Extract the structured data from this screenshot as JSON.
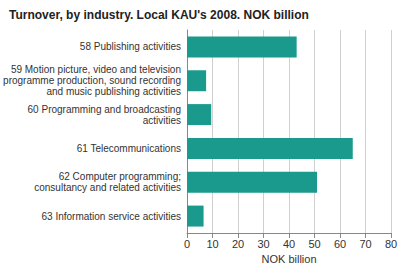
{
  "chart_data": {
    "type": "bar",
    "orientation": "horizontal",
    "title": "Turnover, by industry. Local KAU's 2008. NOK billion",
    "x_label": "NOK billion",
    "categories": [
      "58 Publishing activities",
      "59 Motion picture, video and television\nprogramme production, sound recording\nand music publishing activities",
      "60 Programming and broadcasting\nactivities",
      "61 Telecommunications",
      "62 Computer programming;\nconsultancy and related activities",
      "63 Information service activities"
    ],
    "values": [
      43,
      7.5,
      9.5,
      65,
      51,
      6.5
    ],
    "color": "#1a9a8c",
    "xlim": [
      0,
      80
    ],
    "xticks": [
      0,
      10,
      20,
      30,
      40,
      50,
      60,
      70,
      80
    ],
    "grid": true
  }
}
